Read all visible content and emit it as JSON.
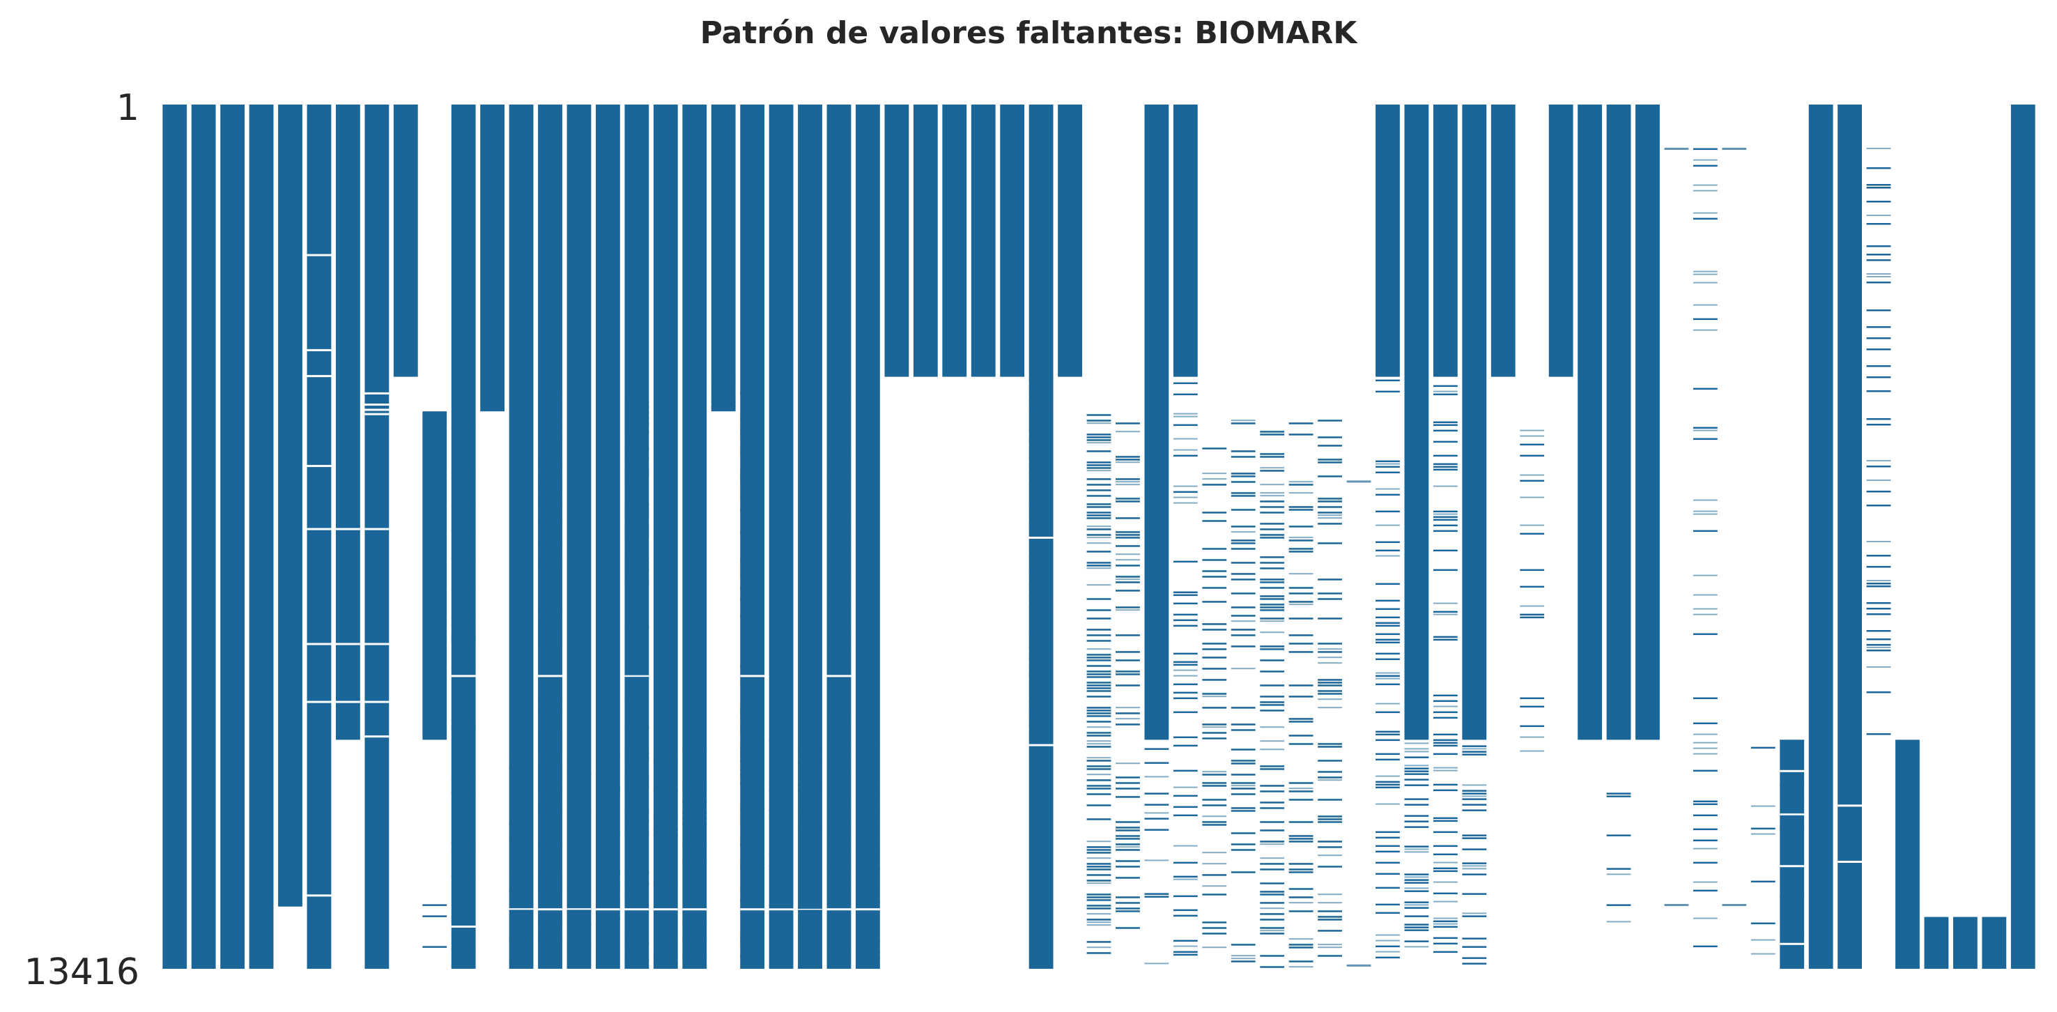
{
  "chart_data": {
    "type": "heatmap",
    "title": "Patrón de valores faltantes: BIOMARK",
    "ytick_labels": [
      "1",
      "13416"
    ],
    "y_range": [
      1,
      13416
    ],
    "n_rows": 13416,
    "n_columns": 65,
    "colors": {
      "present": "#1b6698",
      "missing": "#ffffff"
    },
    "columns": [
      {
        "present": [
          [
            0,
            1
          ]
        ],
        "gaps": []
      },
      {
        "present": [
          [
            0,
            1
          ]
        ],
        "gaps": []
      },
      {
        "present": [
          [
            0,
            1
          ]
        ],
        "gaps": []
      },
      {
        "present": [
          [
            0,
            1
          ]
        ],
        "gaps": []
      },
      {
        "present": [
          [
            0,
            0.928
          ]
        ],
        "gaps": []
      },
      {
        "present": [
          [
            0,
            1
          ]
        ],
        "gaps": [
          0.173,
          0.283,
          0.313,
          0.417,
          0.49,
          0.623,
          0.69,
          0.914
        ]
      },
      {
        "present": [
          [
            0,
            0.735
          ]
        ],
        "gaps": [
          0.49,
          0.623,
          0.69
        ]
      },
      {
        "present": [
          [
            0,
            1
          ]
        ],
        "gaps": [
          0.333,
          0.346,
          0.352,
          0.357,
          0.49,
          0.623,
          0.69,
          0.73
        ]
      },
      {
        "present": [
          [
            0,
            0.315
          ]
        ],
        "gaps": []
      },
      {
        "present": [
          [
            0.355,
            0.735
          ]
        ],
        "noise": [
          0.735,
          1,
          0.06,
          0.02
        ]
      },
      {
        "present": [
          [
            0,
            1
          ]
        ],
        "noise": [
          0.36,
          1,
          0.14,
          0.04
        ],
        "gaps": [
          0.66,
          0.95
        ]
      },
      {
        "present": [
          [
            0,
            0.355
          ]
        ],
        "gaps": []
      },
      {
        "present": [
          [
            0,
            1
          ]
        ],
        "noise": [
          0.735,
          1,
          0.1,
          0.04
        ],
        "gaps": [
          0.93
        ]
      },
      {
        "present": [
          [
            0,
            1
          ]
        ],
        "noise": [
          0.33,
          1,
          0.12,
          0.05
        ],
        "gaps": [
          0.66,
          0.93
        ]
      },
      {
        "present": [
          [
            0,
            1
          ]
        ],
        "noise": [
          0.735,
          1,
          0.1,
          0.04
        ],
        "gaps": [
          0.93
        ]
      },
      {
        "present": [
          [
            0,
            1
          ]
        ],
        "noise": [
          0.735,
          1,
          0.1,
          0.04
        ],
        "gaps": [
          0.93
        ]
      },
      {
        "present": [
          [
            0,
            1
          ]
        ],
        "noise": [
          0.33,
          1,
          0.14,
          0.05
        ],
        "gaps": [
          0.66,
          0.93
        ]
      },
      {
        "present": [
          [
            0,
            1
          ]
        ],
        "noise": [
          0.735,
          1,
          0.1,
          0.04
        ],
        "gaps": [
          0.93
        ]
      },
      {
        "present": [
          [
            0,
            1
          ]
        ],
        "noise": [
          0.735,
          1,
          0.1,
          0.04
        ],
        "gaps": [
          0.93
        ]
      },
      {
        "present": [
          [
            0,
            0.355
          ]
        ],
        "noise": [
          0.31,
          0.355,
          0.3,
          0.08
        ]
      },
      {
        "present": [
          [
            0,
            1
          ]
        ],
        "noise": [
          0.33,
          1,
          0.12,
          0.05
        ],
        "gaps": [
          0.66,
          0.93
        ]
      },
      {
        "present": [
          [
            0,
            1
          ]
        ],
        "noise": [
          0.735,
          1,
          0.1,
          0.04
        ],
        "gaps": [
          0.93
        ]
      },
      {
        "present": [
          [
            0,
            1
          ]
        ],
        "noise": [
          0.735,
          1,
          0.1,
          0.04
        ],
        "gaps": [
          0.93
        ]
      },
      {
        "present": [
          [
            0,
            1
          ]
        ],
        "noise": [
          0.33,
          1,
          0.14,
          0.05
        ],
        "gaps": [
          0.66,
          0.93
        ]
      },
      {
        "present": [
          [
            0,
            1
          ]
        ],
        "noise": [
          0.735,
          1,
          0.1,
          0.04
        ],
        "gaps": [
          0.93
        ]
      },
      {
        "present": [
          [
            0,
            0.315
          ]
        ],
        "gaps": []
      },
      {
        "present": [
          [
            0,
            0.315
          ]
        ],
        "gaps": []
      },
      {
        "present": [
          [
            0,
            0.315
          ]
        ],
        "gaps": []
      },
      {
        "present": [
          [
            0,
            0.315
          ]
        ],
        "gaps": []
      },
      {
        "present": [
          [
            0,
            0.315
          ]
        ],
        "gaps": []
      },
      {
        "present": [
          [
            0,
            1
          ]
        ],
        "noise": [
          0.315,
          0.72,
          0.3,
          0.1
        ],
        "gaps": [
          0.5,
          0.74
        ]
      },
      {
        "present": [
          [
            0,
            0.315
          ]
        ],
        "gaps": []
      },
      {
        "present": [],
        "noise": [
          0.355,
          1,
          0.38,
          0.1
        ]
      },
      {
        "present": [],
        "noise": [
          0.355,
          1,
          0.2,
          0.06
        ]
      },
      {
        "present": [
          [
            0,
            0.735
          ]
        ],
        "noise": [
          0.735,
          1,
          0.1,
          0.03
        ]
      },
      {
        "present": [
          [
            0,
            0.315
          ]
        ],
        "noise": [
          0.315,
          1,
          0.2,
          0.06
        ]
      },
      {
        "present": [],
        "noise": [
          0.355,
          1,
          0.2,
          0.06
        ]
      },
      {
        "present": [],
        "noise": [
          0.355,
          1,
          0.2,
          0.06
        ]
      },
      {
        "present": [],
        "noise": [
          0.355,
          1,
          0.2,
          0.06
        ]
      },
      {
        "present": [],
        "noise": [
          0.355,
          1,
          0.2,
          0.06
        ]
      },
      {
        "present": [],
        "noise": [
          0.355,
          1,
          0.2,
          0.06
        ]
      },
      {
        "present": [],
        "marks": [
          0.435,
          0.995
        ]
      },
      {
        "present": [
          [
            0,
            0.315
          ]
        ],
        "noise": [
          0.315,
          1,
          0.2,
          0.06
        ]
      },
      {
        "present": [
          [
            0,
            0.735
          ]
        ],
        "noise": [
          0.735,
          1,
          0.2,
          0.06
        ]
      },
      {
        "present": [
          [
            0,
            0.315
          ]
        ],
        "noise": [
          0.315,
          1,
          0.2,
          0.06
        ]
      },
      {
        "present": [
          [
            0,
            0.735
          ]
        ],
        "noise": [
          0.735,
          1,
          0.2,
          0.06
        ]
      },
      {
        "present": [
          [
            0,
            0.315
          ]
        ],
        "gaps": []
      },
      {
        "present": [],
        "noise": [
          0.315,
          0.75,
          0.05,
          0.05
        ]
      },
      {
        "present": [
          [
            0,
            0.315
          ]
        ],
        "gaps": []
      },
      {
        "present": [
          [
            0,
            0.735
          ]
        ],
        "gaps": []
      },
      {
        "present": [
          [
            0,
            0.735
          ]
        ],
        "noise": [
          0.735,
          1,
          0.04,
          0.04
        ]
      },
      {
        "present": [
          [
            0,
            0.735
          ]
        ],
        "gaps": []
      },
      {
        "present": [],
        "marks": [
          0.05,
          0.925
        ]
      },
      {
        "present": [],
        "noise": [
          0.015,
          1,
          0.06,
          0.06
        ]
      },
      {
        "present": [],
        "marks": [
          0.05,
          0.925
        ]
      },
      {
        "present": [],
        "noise": [
          0.74,
          1,
          0.05,
          0.05
        ]
      },
      {
        "present": [
          [
            0.735,
            1
          ]
        ],
        "noise": [
          0.735,
          1,
          0.08,
          0.04
        ],
        "gaps": [
          0.77,
          0.82,
          0.88,
          0.97
        ]
      },
      {
        "present": [
          [
            0,
            1
          ]
        ],
        "gaps": []
      },
      {
        "present": [
          [
            0,
            1
          ]
        ],
        "gaps": [
          0.81,
          0.875
        ]
      },
      {
        "present": [],
        "noise": [
          0.05,
          0.73,
          0.15,
          0.06
        ]
      },
      {
        "present": [
          [
            0.735,
            1
          ]
        ],
        "noise": [
          0.735,
          1,
          0.0,
          0.0
        ]
      },
      {
        "present": [
          [
            0.94,
            1
          ]
        ],
        "gaps": []
      },
      {
        "present": [
          [
            0.94,
            1
          ]
        ],
        "gaps": []
      },
      {
        "present": [
          [
            0.94,
            1
          ]
        ],
        "gaps": []
      },
      {
        "present": [
          [
            0,
            1
          ]
        ],
        "gaps": []
      }
    ]
  }
}
